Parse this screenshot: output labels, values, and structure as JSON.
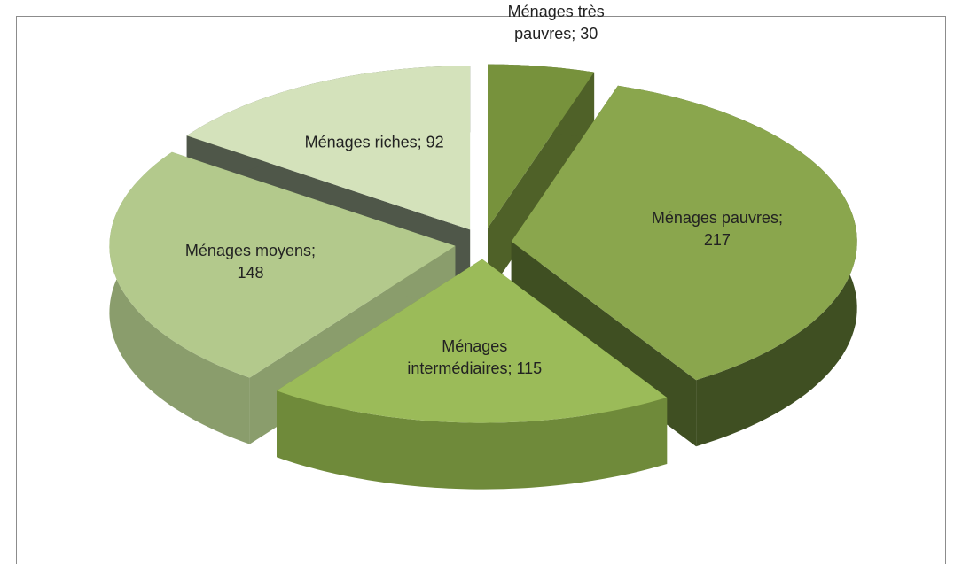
{
  "chart_data": {
    "type": "pie3d",
    "value_labels": [
      "Ménages très pauvres; 30",
      "Ménages pauvres; 217",
      "Ménages intermédiaires; 115",
      "Ménages moyens; 148",
      "Ménages riches; 92"
    ],
    "values": [
      30,
      217,
      115,
      148,
      92
    ],
    "colors": [
      "#77923c",
      "#8aa64d",
      "#9bbb59",
      "#b3c98c",
      "#d4e2bb"
    ],
    "side_colors": [
      "#4f6128",
      "#3f4f22",
      "#6f8a3a",
      "#8a9d6c",
      "#4f5749"
    ]
  }
}
